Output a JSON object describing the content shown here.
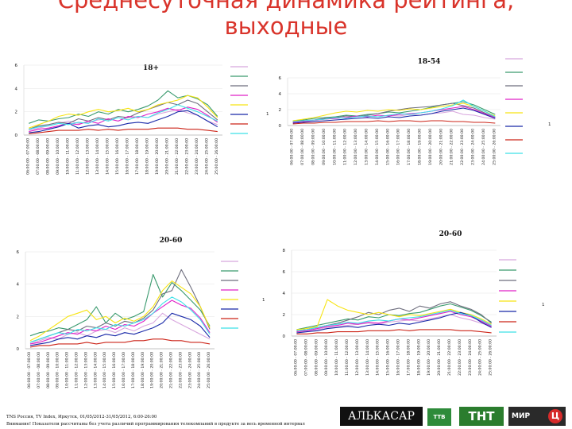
{
  "title": "Среднесуточная динамика рейтинга, выходные",
  "footer": {
    "line1": "TNS Россия, TV Index, Иркутск, 01/05/2012-31/05/2012, 6:00-26:00",
    "line2": "Внимание! Показатели рассчитаны без учета различий программирования телекомпаний в продукте за весь временной интервал"
  },
  "logos": {
    "alkasar": "АЛЬКАСАР",
    "tv": "ТТВ",
    "tnt": "ТНТ",
    "mir": "МИР",
    "mir_badge": "Ц"
  },
  "colors": {
    "c1": "#d8a6de",
    "c2": "#3a9a6e",
    "c3": "#6e6e7e",
    "c4": "#e020c8",
    "c5": "#f7e413",
    "c6": "#1828a8",
    "c7": "#cc2418",
    "c8": "#3ce0e8"
  },
  "chart_data": [
    {
      "type": "line",
      "title": "18+",
      "ylim": [
        0,
        6
      ],
      "yticks": [
        "0",
        "2",
        "4",
        "6"
      ],
      "ylabel": "",
      "legend_right_label": "1",
      "x": [
        "06:00:00 - 07:00:00",
        "07:00:00 - 08:00:00",
        "08:00:00 - 09:00:00",
        "09:00:00 - 10:00:00",
        "10:00:00 - 11:00:00",
        "11:00:00 - 12:00:00",
        "12:00:00 - 13:00:00",
        "13:00:00 - 14:00:00",
        "14:00:00 - 15:00:00",
        "15:00:00 - 16:00:00",
        "16:00:00 - 17:00:00",
        "17:00:00 - 18:00:00",
        "18:00:00 - 19:00:00",
        "19:00:00 - 20:00:00",
        "20:00:00 - 21:00:00",
        "21:00:00 - 22:00:00",
        "22:00:00 - 23:00:00",
        "23:00:00 - 24:00:00",
        "24:00:00 - 25:00:00",
        "25:00:00 - 26:00:00"
      ],
      "series": [
        {
          "color": "c1",
          "values": [
            0.4,
            0.6,
            0.8,
            1.0,
            1.2,
            1.0,
            1.1,
            1.3,
            1.4,
            1.2,
            1.5,
            1.6,
            1.5,
            1.8,
            2.0,
            2.2,
            1.9,
            1.7,
            1.2,
            0.9
          ]
        },
        {
          "color": "c2",
          "values": [
            1.0,
            1.3,
            1.2,
            1.4,
            1.5,
            1.8,
            1.6,
            2.0,
            1.8,
            2.2,
            2.0,
            2.2,
            2.5,
            3.0,
            3.8,
            3.2,
            3.4,
            3.1,
            2.6,
            1.6
          ]
        },
        {
          "color": "c3",
          "values": [
            0.5,
            0.8,
            0.9,
            1.1,
            1.0,
            1.4,
            1.2,
            1.5,
            1.3,
            1.6,
            1.5,
            1.9,
            2.2,
            2.5,
            2.8,
            2.6,
            3.0,
            2.7,
            2.0,
            1.3
          ]
        },
        {
          "color": "c4",
          "values": [
            0.3,
            0.5,
            0.6,
            0.8,
            1.0,
            0.9,
            1.2,
            1.0,
            1.4,
            1.2,
            1.6,
            1.5,
            1.8,
            2.0,
            2.3,
            2.1,
            2.4,
            2.2,
            1.7,
            1.1
          ]
        },
        {
          "color": "c5",
          "values": [
            0.6,
            0.9,
            1.2,
            1.6,
            1.8,
            1.7,
            2.0,
            2.2,
            2.0,
            2.1,
            2.3,
            2.0,
            2.2,
            2.6,
            2.8,
            3.0,
            3.4,
            3.2,
            2.4,
            1.5
          ]
        },
        {
          "color": "c6",
          "values": [
            0.2,
            0.3,
            0.5,
            0.7,
            1.0,
            0.6,
            0.8,
            0.9,
            0.7,
            0.8,
            1.0,
            1.1,
            1.0,
            1.3,
            1.6,
            2.0,
            2.1,
            1.7,
            1.2,
            0.7
          ]
        },
        {
          "color": "c7",
          "values": [
            0.1,
            0.2,
            0.3,
            0.4,
            0.4,
            0.4,
            0.5,
            0.4,
            0.5,
            0.4,
            0.5,
            0.5,
            0.5,
            0.6,
            0.6,
            0.6,
            0.5,
            0.5,
            0.4,
            0.3
          ]
        },
        {
          "color": "c8",
          "values": [
            0.5,
            0.7,
            0.8,
            1.0,
            0.9,
            1.1,
            1.0,
            1.4,
            1.2,
            1.5,
            1.3,
            1.6,
            1.5,
            1.9,
            2.2,
            2.6,
            2.3,
            2.0,
            1.6,
            1.2
          ]
        }
      ]
    },
    {
      "type": "line",
      "title": "18-54",
      "ylim": [
        0,
        6
      ],
      "yticks": [
        "0",
        "2",
        "4",
        "6"
      ],
      "ylabel": "",
      "legend_right_label": "1",
      "x": [
        "06:00:00 - 07:00:00",
        "07:00:00 - 08:00:00",
        "08:00:00 - 09:00:00",
        "09:00:00 - 10:00:00",
        "10:00:00 - 11:00:00",
        "11:00:00 - 12:00:00",
        "12:00:00 - 13:00:00",
        "13:00:00 - 14:00:00",
        "14:00:00 - 15:00:00",
        "15:00:00 - 16:00:00",
        "16:00:00 - 17:00:00",
        "17:00:00 - 18:00:00",
        "18:00:00 - 19:00:00",
        "19:00:00 - 20:00:00",
        "20:00:00 - 21:00:00",
        "21:00:00 - 22:00:00",
        "22:00:00 - 23:00:00",
        "23:00:00 - 24:00:00",
        "24:00:00 - 25:00:00",
        "25:00:00 - 26:00:00"
      ],
      "series": [
        {
          "color": "c1",
          "values": [
            0.4,
            0.5,
            0.6,
            0.8,
            0.9,
            1.0,
            1.1,
            1.2,
            1.1,
            1.3,
            1.2,
            1.4,
            1.3,
            1.5,
            1.6,
            1.8,
            1.4,
            1.3,
            1.0,
            0.8
          ]
        },
        {
          "color": "c2",
          "values": [
            0.6,
            0.7,
            0.9,
            1.0,
            1.1,
            1.3,
            1.2,
            1.4,
            1.5,
            1.7,
            1.6,
            1.8,
            2.0,
            2.3,
            2.6,
            2.8,
            3.0,
            2.6,
            2.0,
            1.4
          ]
        },
        {
          "color": "c3",
          "values": [
            0.5,
            0.6,
            0.7,
            0.9,
            1.0,
            1.2,
            1.1,
            1.3,
            1.5,
            1.8,
            2.0,
            2.2,
            2.3,
            2.4,
            2.6,
            2.8,
            2.5,
            2.2,
            1.6,
            1.0
          ]
        },
        {
          "color": "c4",
          "values": [
            0.4,
            0.5,
            0.7,
            0.8,
            0.9,
            1.0,
            1.2,
            1.1,
            1.3,
            1.2,
            1.4,
            1.5,
            1.6,
            1.8,
            2.0,
            2.2,
            2.4,
            2.0,
            1.5,
            1.0
          ]
        },
        {
          "color": "c5",
          "values": [
            0.6,
            0.8,
            1.0,
            1.3,
            1.6,
            1.8,
            1.7,
            1.9,
            1.8,
            2.0,
            1.9,
            2.1,
            2.0,
            2.2,
            2.4,
            2.6,
            2.8,
            2.4,
            1.8,
            1.2
          ]
        },
        {
          "color": "c6",
          "values": [
            0.3,
            0.4,
            0.5,
            0.6,
            0.7,
            0.8,
            0.9,
            1.0,
            0.9,
            1.1,
            1.0,
            1.2,
            1.3,
            1.5,
            1.8,
            2.0,
            2.2,
            1.9,
            1.4,
            0.9
          ]
        },
        {
          "color": "c7",
          "values": [
            0.2,
            0.3,
            0.3,
            0.4,
            0.4,
            0.5,
            0.5,
            0.5,
            0.6,
            0.5,
            0.6,
            0.6,
            0.5,
            0.6,
            0.6,
            0.5,
            0.5,
            0.4,
            0.4,
            0.3
          ]
        },
        {
          "color": "c8",
          "values": [
            0.5,
            0.6,
            0.7,
            0.8,
            1.0,
            0.9,
            1.1,
            1.2,
            1.1,
            1.3,
            1.5,
            1.4,
            1.6,
            1.8,
            2.1,
            2.5,
            3.2,
            2.4,
            1.8,
            1.1
          ]
        }
      ]
    },
    {
      "type": "line",
      "title": "20-60",
      "ylim": [
        0,
        6
      ],
      "yticks": [
        "0",
        "2",
        "4",
        "6"
      ],
      "ylabel": "",
      "legend_right_label": "1",
      "x": [
        "06:00:00 - 07:00:00",
        "07:00:00 - 08:00:00",
        "08:00:00 - 09:00:00",
        "09:00:00 - 10:00:00",
        "10:00:00 - 11:00:00",
        "11:00:00 - 12:00:00",
        "12:00:00 - 13:00:00",
        "13:00:00 - 14:00:00",
        "14:00:00 - 15:00:00",
        "15:00:00 - 16:00:00",
        "16:00:00 - 17:00:00",
        "17:00:00 - 18:00:00",
        "18:00:00 - 19:00:00",
        "19:00:00 - 20:00:00",
        "20:00:00 - 21:00:00",
        "21:00:00 - 22:00:00",
        "22:00:00 - 23:00:00",
        "23:00:00 - 24:00:00",
        "24:00:00 - 25:00:00",
        "25:00:00 - 26:00:00"
      ],
      "series": [
        {
          "color": "c1",
          "values": [
            0.3,
            0.5,
            0.7,
            0.6,
            0.9,
            1.0,
            0.8,
            1.1,
            1.2,
            1.0,
            1.3,
            1.1,
            1.4,
            1.6,
            2.2,
            1.8,
            1.5,
            1.2,
            0.9,
            0.6
          ]
        },
        {
          "color": "c2",
          "values": [
            0.8,
            1.0,
            1.1,
            1.3,
            1.2,
            1.5,
            1.8,
            2.6,
            1.6,
            2.2,
            1.8,
            2.0,
            2.3,
            4.6,
            3.2,
            4.1,
            3.6,
            3.0,
            2.4,
            1.4
          ]
        },
        {
          "color": "c3",
          "values": [
            0.4,
            0.6,
            0.8,
            1.0,
            1.2,
            1.1,
            1.4,
            1.3,
            1.6,
            1.4,
            1.7,
            1.6,
            1.9,
            2.4,
            3.4,
            3.6,
            4.9,
            3.8,
            2.6,
            1.2
          ]
        },
        {
          "color": "c4",
          "values": [
            0.3,
            0.4,
            0.6,
            0.8,
            1.0,
            0.9,
            1.2,
            1.1,
            1.4,
            1.2,
            1.5,
            1.4,
            1.7,
            2.2,
            2.6,
            3.0,
            2.7,
            2.5,
            1.9,
            1.0
          ]
        },
        {
          "color": "c5",
          "values": [
            0.5,
            0.8,
            1.2,
            1.6,
            2.0,
            2.2,
            2.4,
            1.8,
            2.0,
            1.6,
            1.9,
            1.7,
            2.0,
            2.6,
            3.6,
            4.2,
            3.8,
            3.4,
            2.6,
            1.3
          ]
        },
        {
          "color": "c6",
          "values": [
            0.2,
            0.3,
            0.4,
            0.6,
            0.7,
            0.6,
            0.8,
            0.7,
            0.9,
            0.8,
            1.0,
            0.9,
            1.1,
            1.3,
            1.6,
            2.2,
            2.0,
            1.8,
            1.4,
            0.7
          ]
        },
        {
          "color": "c7",
          "values": [
            0.1,
            0.2,
            0.2,
            0.3,
            0.3,
            0.3,
            0.4,
            0.3,
            0.4,
            0.4,
            0.4,
            0.5,
            0.5,
            0.6,
            0.6,
            0.5,
            0.5,
            0.4,
            0.4,
            0.3
          ]
        },
        {
          "color": "c8",
          "values": [
            0.4,
            0.6,
            0.8,
            1.0,
            0.9,
            1.2,
            1.1,
            1.3,
            1.2,
            1.5,
            1.4,
            1.6,
            1.8,
            2.2,
            2.8,
            3.2,
            2.9,
            2.4,
            1.8,
            0.9
          ]
        }
      ]
    },
    {
      "type": "line",
      "title": "20-60",
      "ylim": [
        0,
        8
      ],
      "yticks": [
        "0",
        "2",
        "4",
        "6",
        "8"
      ],
      "ylabel": "",
      "legend_right_label": "1",
      "x": [
        "06:00:00 - 07:00:00",
        "07:00:00 - 08:00:00",
        "08:00:00 - 09:00:00",
        "09:00:00 - 10:00:00",
        "10:00:00 - 11:00:00",
        "11:00:00 - 12:00:00",
        "12:00:00 - 13:00:00",
        "13:00:00 - 14:00:00",
        "14:00:00 - 15:00:00",
        "15:00:00 - 16:00:00",
        "16:00:00 - 17:00:00",
        "17:00:00 - 18:00:00",
        "18:00:00 - 19:00:00",
        "19:00:00 - 20:00:00",
        "20:00:00 - 21:00:00",
        "21:00:00 - 22:00:00",
        "22:00:00 - 23:00:00",
        "23:00:00 - 24:00:00",
        "24:00:00 - 25:00:00",
        "25:00:00 - 26:00:00"
      ],
      "series": [
        {
          "color": "c1",
          "values": [
            0.4,
            0.5,
            0.6,
            0.8,
            0.9,
            1.0,
            1.1,
            1.2,
            1.1,
            1.3,
            1.4,
            1.5,
            1.4,
            1.6,
            1.8,
            2.0,
            1.7,
            1.5,
            1.2,
            0.9
          ]
        },
        {
          "color": "c2",
          "values": [
            0.6,
            0.8,
            1.0,
            1.2,
            1.4,
            1.6,
            1.5,
            1.8,
            1.7,
            2.0,
            1.9,
            2.1,
            2.2,
            2.5,
            2.8,
            3.0,
            2.7,
            2.4,
            1.9,
            1.3
          ]
        },
        {
          "color": "c3",
          "values": [
            0.5,
            0.6,
            0.8,
            1.0,
            1.2,
            1.5,
            1.8,
            2.2,
            2.0,
            2.4,
            2.6,
            2.3,
            2.8,
            2.6,
            3.0,
            3.2,
            2.8,
            2.5,
            2.0,
            1.2
          ]
        },
        {
          "color": "c4",
          "values": [
            0.4,
            0.5,
            0.7,
            0.9,
            1.0,
            1.2,
            1.1,
            1.3,
            1.2,
            1.4,
            1.6,
            1.5,
            1.7,
            1.9,
            2.1,
            2.3,
            2.0,
            1.8,
            1.4,
            0.9
          ]
        },
        {
          "color": "c5",
          "values": [
            0.6,
            0.7,
            0.9,
            3.4,
            2.8,
            2.4,
            2.2,
            2.0,
            2.2,
            2.0,
            1.8,
            2.0,
            1.9,
            2.1,
            2.3,
            2.5,
            2.2,
            2.0,
            1.6,
            1.1
          ]
        },
        {
          "color": "c6",
          "values": [
            0.3,
            0.4,
            0.5,
            0.7,
            0.8,
            0.9,
            0.8,
            1.0,
            1.1,
            1.0,
            1.2,
            1.1,
            1.3,
            1.5,
            1.7,
            2.0,
            2.2,
            1.9,
            1.3,
            0.8
          ]
        },
        {
          "color": "c7",
          "values": [
            0.2,
            0.2,
            0.3,
            0.3,
            0.4,
            0.4,
            0.4,
            0.5,
            0.5,
            0.5,
            0.6,
            0.5,
            0.6,
            0.6,
            0.6,
            0.6,
            0.5,
            0.5,
            0.4,
            0.3
          ]
        },
        {
          "color": "c8",
          "values": [
            0.5,
            0.6,
            0.8,
            1.0,
            1.1,
            1.3,
            1.2,
            1.4,
            1.5,
            1.4,
            1.6,
            1.7,
            1.8,
            2.0,
            2.2,
            2.4,
            2.1,
            1.9,
            1.5,
            1.0
          ]
        }
      ]
    }
  ]
}
